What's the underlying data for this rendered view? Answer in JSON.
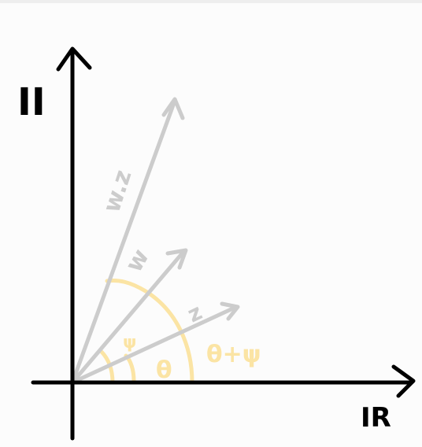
{
  "axes": {
    "imaginary_label": "II",
    "real_label": "IR"
  },
  "vectors": [
    {
      "label": "w.z"
    },
    {
      "label": "w"
    },
    {
      "label": "z"
    }
  ],
  "angles": {
    "psi_label": "ψ",
    "theta_label": "θ",
    "sum_label": "θ+ψ"
  },
  "colors": {
    "axis": "#000000",
    "vector": "#cccccc",
    "angle": "#fbe4a4"
  }
}
